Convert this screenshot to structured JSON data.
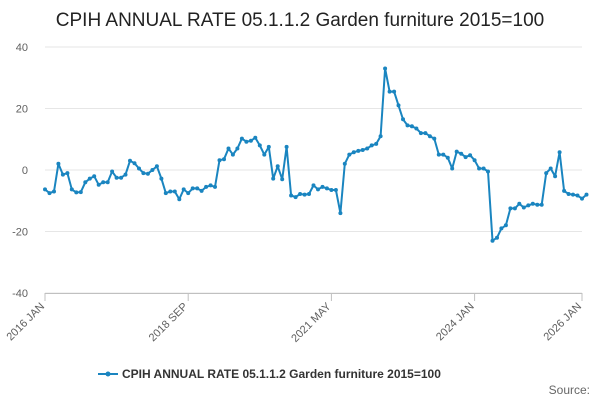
{
  "chart_data": {
    "type": "line",
    "title": "CPIH ANNUAL RATE 05.1.1.2 Garden furniture 2015=100",
    "xlabel": "",
    "ylabel": "",
    "ylim": [
      -40,
      40
    ],
    "yticks": [
      40,
      20,
      0,
      -20,
      -40
    ],
    "xticks": [
      {
        "label": "2016 JAN",
        "x": 0
      },
      {
        "label": "2018 SEP",
        "x": 32
      },
      {
        "label": "2021 MAY",
        "x": 64
      },
      {
        "label": "2024 JAN",
        "x": 96
      },
      {
        "label": "2026 JAN",
        "x": 120
      }
    ],
    "x_unit": "months since 2016 JAN",
    "grid": true,
    "legend_position": "bottom",
    "series": [
      {
        "name": "CPIH ANNUAL RATE 05.1.1.2 Garden furniture 2015=100",
        "color": "#1a85c0",
        "values": [
          -6.3,
          -7.5,
          -7.0,
          2.0,
          -1.5,
          -1.0,
          -6.3,
          -7.3,
          -7.2,
          -4.0,
          -2.8,
          -2.0,
          -4.8,
          -4.0,
          -4.0,
          -0.5,
          -2.5,
          -2.5,
          -1.5,
          3.0,
          2.2,
          0.5,
          -1.0,
          -1.2,
          0.0,
          1.2,
          -2.8,
          -7.5,
          -7.0,
          -7.0,
          -9.5,
          -6.3,
          -7.5,
          -6.0,
          -6.0,
          -6.8,
          -5.5,
          -5.0,
          -5.5,
          3.2,
          3.5,
          7.0,
          5.0,
          7.0,
          10.2,
          9.2,
          9.5,
          10.5,
          8.0,
          5.0,
          7.5,
          -2.8,
          1.2,
          -3.0,
          7.5,
          -8.3,
          -8.8,
          -7.8,
          -8.0,
          -7.8,
          -5.0,
          -6.3,
          -5.5,
          -6.0,
          -6.5,
          -6.5,
          -14.0,
          2.0,
          5.0,
          5.8,
          6.2,
          6.5,
          7.0,
          8.0,
          8.5,
          11.0,
          33.0,
          25.5,
          25.5,
          21.0,
          16.5,
          14.5,
          14.2,
          13.5,
          12.0,
          12.0,
          11.0,
          10.2,
          5.0,
          5.0,
          4.0,
          0.5,
          6.0,
          5.3,
          4.2,
          4.8,
          3.2,
          0.5,
          0.5,
          -0.5,
          -23.0,
          -22.0,
          -19.0,
          -18.0,
          -12.5,
          -12.5,
          -11.0,
          -12.2,
          -11.5,
          -11.0,
          -11.3,
          -11.3,
          -1.0,
          0.5,
          -2.0,
          5.8,
          -6.8,
          -7.8,
          -8.0,
          -8.3,
          -9.3,
          -8.0
        ]
      }
    ]
  },
  "source_label": "Source:"
}
